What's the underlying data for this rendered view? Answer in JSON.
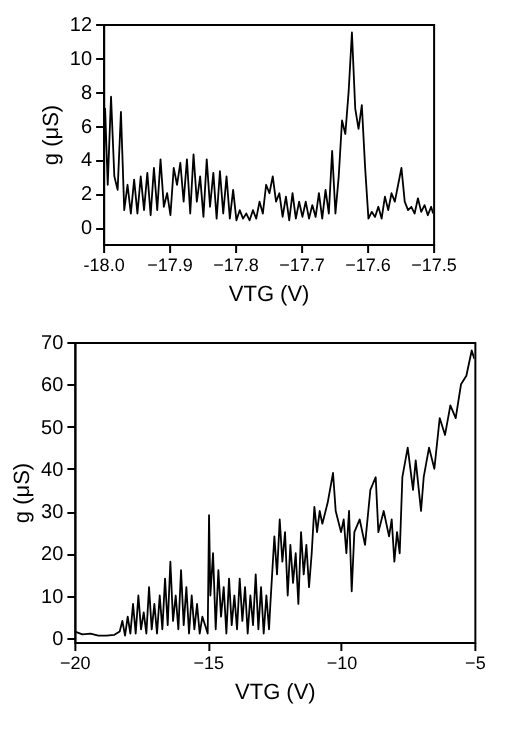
{
  "chart_data": [
    {
      "type": "line",
      "xlabel": "VTG (V)",
      "ylabel": "g (μS)",
      "xlim": [
        -18.0,
        -17.5
      ],
      "ylim": [
        -1,
        12
      ],
      "xticks": [
        {
          "value": -18.0,
          "label": "-18.0"
        },
        -17.9,
        -17.8,
        -17.7,
        -17.6,
        -17.5
      ],
      "yticks": [
        0,
        2,
        4,
        6,
        8,
        10,
        12
      ],
      "grid": false,
      "line_style": "solid",
      "color": "#000000",
      "x": [
        -18.0,
        -17.997,
        -17.993,
        -17.988,
        -17.983,
        -17.978,
        -17.973,
        -17.968,
        -17.963,
        -17.958,
        -17.953,
        -17.948,
        -17.943,
        -17.938,
        -17.933,
        -17.928,
        -17.923,
        -17.918,
        -17.913,
        -17.908,
        -17.903,
        -17.898,
        -17.893,
        -17.888,
        -17.883,
        -17.878,
        -17.873,
        -17.868,
        -17.863,
        -17.858,
        -17.853,
        -17.848,
        -17.843,
        -17.838,
        -17.833,
        -17.828,
        -17.823,
        -17.818,
        -17.813,
        -17.808,
        -17.803,
        -17.798,
        -17.793,
        -17.788,
        -17.783,
        -17.778,
        -17.773,
        -17.768,
        -17.763,
        -17.758,
        -17.753,
        -17.748,
        -17.743,
        -17.738,
        -17.733,
        -17.728,
        -17.723,
        -17.718,
        -17.713,
        -17.708,
        -17.703,
        -17.698,
        -17.693,
        -17.688,
        -17.683,
        -17.678,
        -17.673,
        -17.668,
        -17.663,
        -17.658,
        -17.653,
        -17.648,
        -17.643,
        -17.638,
        -17.633,
        -17.628,
        -17.623,
        -17.618,
        -17.613,
        -17.608,
        -17.603,
        -17.598,
        -17.593,
        -17.588,
        -17.583,
        -17.578,
        -17.573,
        -17.568,
        -17.563,
        -17.558,
        -17.553,
        -17.548,
        -17.543,
        -17.538,
        -17.533,
        -17.528,
        -17.523,
        -17.518,
        -17.513,
        -17.508,
        -17.503,
        -17.5
      ],
      "values": [
        2,
        7,
        2.5,
        7.7,
        3,
        2.2,
        6.8,
        1,
        2.5,
        0.8,
        2.8,
        0.8,
        3,
        1,
        3.2,
        0.7,
        3.5,
        1,
        4,
        1.2,
        2,
        0.7,
        3.5,
        2.5,
        3.8,
        1.5,
        4,
        0.8,
        4.3,
        1.5,
        3,
        0.6,
        4,
        1.2,
        3.2,
        0.5,
        3.3,
        0.8,
        3,
        0.5,
        2.2,
        0.4,
        1,
        0.5,
        0.8,
        0.4,
        1,
        0.5,
        1.5,
        0.8,
        2.5,
        2,
        3,
        1.5,
        2,
        0.6,
        1.8,
        0.4,
        2,
        0.5,
        1.5,
        0.6,
        1.5,
        0.5,
        1.3,
        0.6,
        2,
        0.5,
        2.2,
        0.8,
        4.5,
        0.8,
        3,
        6.3,
        5.5,
        8,
        11.5,
        7,
        5.8,
        7.2,
        3.5,
        0.5,
        0.9,
        0.6,
        1.2,
        0.5,
        1.8,
        1,
        2,
        1.5,
        2.5,
        3.5,
        1.5,
        1,
        1.2,
        0.8,
        1.7,
        0.9,
        1.3,
        0.7,
        1.2,
        0.8
      ]
    },
    {
      "type": "line",
      "xlabel": "VTG (V)",
      "ylabel": "g (μS)",
      "xlim": [
        -20,
        -5
      ],
      "ylim": [
        -1,
        70
      ],
      "xticks": [
        -20,
        -15,
        -10,
        -5
      ],
      "yticks": [
        0,
        10,
        20,
        30,
        40,
        50,
        60,
        70
      ],
      "grid": false,
      "line_style": "solid",
      "color": "#000000",
      "x": [
        -20,
        -19.7,
        -19.4,
        -19.1,
        -18.8,
        -18.5,
        -18.3,
        -18.2,
        -18.1,
        -18.0,
        -17.9,
        -17.8,
        -17.7,
        -17.6,
        -17.5,
        -17.4,
        -17.3,
        -17.2,
        -17.1,
        -17.0,
        -16.9,
        -16.8,
        -16.7,
        -16.6,
        -16.5,
        -16.4,
        -16.3,
        -16.2,
        -16.1,
        -16.0,
        -15.9,
        -15.8,
        -15.7,
        -15.6,
        -15.5,
        -15.4,
        -15.3,
        -15.2,
        -15.1,
        -15.0,
        -14.95,
        -14.9,
        -14.8,
        -14.7,
        -14.6,
        -14.5,
        -14.4,
        -14.3,
        -14.2,
        -14.1,
        -14.0,
        -13.9,
        -13.8,
        -13.7,
        -13.6,
        -13.5,
        -13.4,
        -13.3,
        -13.2,
        -13.1,
        -13.0,
        -12.9,
        -12.8,
        -12.7,
        -12.65,
        -12.5,
        -12.4,
        -12.3,
        -12.2,
        -12.1,
        -12.0,
        -11.9,
        -11.8,
        -11.7,
        -11.6,
        -11.5,
        -11.4,
        -11.3,
        -11.2,
        -11.1,
        -11.0,
        -10.9,
        -10.8,
        -10.7,
        -10.5,
        -10.3,
        -10.2,
        -10.0,
        -9.9,
        -9.8,
        -9.7,
        -9.6,
        -9.5,
        -9.3,
        -9.1,
        -8.9,
        -8.7,
        -8.6,
        -8.4,
        -8.2,
        -8.1,
        -8.0,
        -7.9,
        -7.8,
        -7.7,
        -7.5,
        -7.3,
        -7.2,
        -7.0,
        -6.9,
        -6.7,
        -6.5,
        -6.3,
        -6.1,
        -5.9,
        -5.7,
        -5.5,
        -5.3,
        -5.1,
        -5.0
      ],
      "values": [
        1.5,
        0.8,
        1,
        0.5,
        0.5,
        0.7,
        1.5,
        4,
        0.5,
        5,
        1,
        8,
        1,
        10,
        2,
        6,
        1,
        12,
        2,
        8,
        1,
        10,
        2,
        14,
        3,
        18,
        4,
        10,
        2,
        16,
        3,
        12,
        1,
        10,
        2,
        8,
        1,
        5,
        3,
        1,
        29,
        10,
        20,
        2,
        16,
        5,
        12,
        1,
        14,
        3,
        10,
        2,
        14,
        4,
        12,
        1,
        10,
        3,
        15,
        2,
        12,
        1,
        10,
        2,
        8,
        24,
        15,
        28,
        18,
        25,
        10,
        22,
        13,
        20,
        8,
        25,
        15,
        22,
        12,
        20,
        31,
        25,
        30,
        27,
        32,
        39,
        30,
        25,
        28,
        20,
        30,
        11,
        25,
        28,
        22,
        35,
        38,
        25,
        30,
        24,
        28,
        18,
        25,
        20,
        38,
        45,
        35,
        42,
        30,
        38,
        45,
        40,
        52,
        48,
        55,
        52,
        60,
        62,
        68,
        66
      ]
    }
  ]
}
